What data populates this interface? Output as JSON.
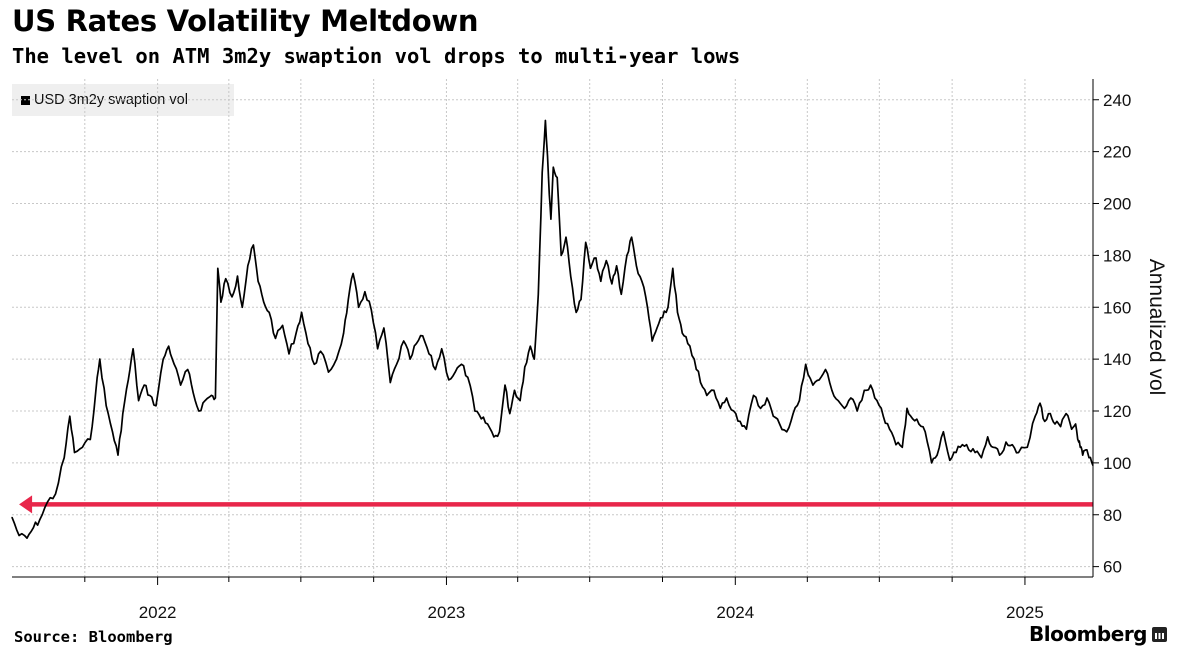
{
  "header": {
    "title": "US Rates Volatility Meltdown",
    "subtitle": "The level on ATM 3m2y swaption vol drops to multi-year lows"
  },
  "footer": {
    "source": "Source: Bloomberg",
    "brand": "Bloomberg"
  },
  "colors": {
    "line": "#000000",
    "reference": "#e8264a",
    "grid": "#c8c8c8"
  },
  "chart_data": {
    "type": "line",
    "title": "US Rates Volatility Meltdown",
    "subtitle": "The level on ATM 3m2y swaption vol drops to multi-year lows",
    "ylabel": "Annualized vol",
    "ylim": [
      56,
      248
    ],
    "yticks": [
      60,
      80,
      100,
      120,
      140,
      160,
      180,
      200,
      220,
      240
    ],
    "xlim": [
      "2021-07-01",
      "2025-03-28"
    ],
    "xticks": [
      {
        "date": "2022-01-01",
        "label": "2022"
      },
      {
        "date": "2023-01-01",
        "label": "2023"
      },
      {
        "date": "2024-01-01",
        "label": "2024"
      },
      {
        "date": "2025-01-01",
        "label": "2025"
      }
    ],
    "grid": true,
    "legend": "top-left",
    "series": [
      {
        "name": "USD 3m2y swaption vol",
        "points": [
          [
            "2021-07-01",
            79
          ],
          [
            "2021-07-10",
            72
          ],
          [
            "2021-07-20",
            71
          ],
          [
            "2021-07-28",
            75
          ],
          [
            "2021-08-05",
            78
          ],
          [
            "2021-08-15",
            85
          ],
          [
            "2021-08-25",
            88
          ],
          [
            "2021-09-05",
            102
          ],
          [
            "2021-09-12",
            118
          ],
          [
            "2021-09-18",
            104
          ],
          [
            "2021-09-28",
            106
          ],
          [
            "2021-10-08",
            109
          ],
          [
            "2021-10-15",
            128
          ],
          [
            "2021-10-20",
            140
          ],
          [
            "2021-10-28",
            122
          ],
          [
            "2021-11-05",
            112
          ],
          [
            "2021-11-12",
            103
          ],
          [
            "2021-11-18",
            119
          ],
          [
            "2021-11-25",
            132
          ],
          [
            "2021-12-01",
            144
          ],
          [
            "2021-12-08",
            124
          ],
          [
            "2021-12-15",
            130
          ],
          [
            "2021-12-22",
            126
          ],
          [
            "2021-12-30",
            122
          ],
          [
            "2022-01-08",
            140
          ],
          [
            "2022-01-15",
            145
          ],
          [
            "2022-01-22",
            138
          ],
          [
            "2022-01-30",
            130
          ],
          [
            "2022-02-08",
            136
          ],
          [
            "2022-02-15",
            127
          ],
          [
            "2022-02-22",
            120
          ],
          [
            "2022-03-02",
            124
          ],
          [
            "2022-03-10",
            126
          ],
          [
            "2022-03-15",
            125
          ],
          [
            "2022-03-18",
            175
          ],
          [
            "2022-03-22",
            162
          ],
          [
            "2022-03-28",
            171
          ],
          [
            "2022-04-05",
            164
          ],
          [
            "2022-04-12",
            172
          ],
          [
            "2022-04-18",
            160
          ],
          [
            "2022-04-25",
            176
          ],
          [
            "2022-05-02",
            184
          ],
          [
            "2022-05-08",
            170
          ],
          [
            "2022-05-15",
            162
          ],
          [
            "2022-05-22",
            158
          ],
          [
            "2022-05-30",
            148
          ],
          [
            "2022-06-08",
            153
          ],
          [
            "2022-06-16",
            142
          ],
          [
            "2022-06-25",
            150
          ],
          [
            "2022-07-02",
            158
          ],
          [
            "2022-07-10",
            146
          ],
          [
            "2022-07-18",
            138
          ],
          [
            "2022-07-26",
            143
          ],
          [
            "2022-08-05",
            135
          ],
          [
            "2022-08-15",
            140
          ],
          [
            "2022-08-24",
            150
          ],
          [
            "2022-08-30",
            163
          ],
          [
            "2022-09-05",
            173
          ],
          [
            "2022-09-12",
            160
          ],
          [
            "2022-09-20",
            166
          ],
          [
            "2022-09-28",
            159
          ],
          [
            "2022-10-06",
            144
          ],
          [
            "2022-10-14",
            152
          ],
          [
            "2022-10-22",
            131
          ],
          [
            "2022-10-30",
            138
          ],
          [
            "2022-11-08",
            147
          ],
          [
            "2022-11-16",
            140
          ],
          [
            "2022-11-24",
            146
          ],
          [
            "2022-12-02",
            149
          ],
          [
            "2022-12-10",
            142
          ],
          [
            "2022-12-18",
            136
          ],
          [
            "2022-12-26",
            144
          ],
          [
            "2023-01-04",
            132
          ],
          [
            "2023-01-12",
            135
          ],
          [
            "2023-01-20",
            138
          ],
          [
            "2023-01-28",
            133
          ],
          [
            "2023-02-06",
            120
          ],
          [
            "2023-02-14",
            117
          ],
          [
            "2023-02-22",
            115
          ],
          [
            "2023-03-02",
            110
          ],
          [
            "2023-03-09",
            112
          ],
          [
            "2023-03-16",
            130
          ],
          [
            "2023-03-22",
            119
          ],
          [
            "2023-03-28",
            128
          ],
          [
            "2023-04-04",
            124
          ],
          [
            "2023-04-10",
            137
          ],
          [
            "2023-04-17",
            145
          ],
          [
            "2023-04-22",
            140
          ],
          [
            "2023-04-27",
            165
          ],
          [
            "2023-05-02",
            212
          ],
          [
            "2023-05-06",
            232
          ],
          [
            "2023-05-10",
            210
          ],
          [
            "2023-05-13",
            194
          ],
          [
            "2023-05-16",
            214
          ],
          [
            "2023-05-21",
            210
          ],
          [
            "2023-05-26",
            180
          ],
          [
            "2023-06-01",
            187
          ],
          [
            "2023-06-07",
            172
          ],
          [
            "2023-06-14",
            158
          ],
          [
            "2023-06-20",
            163
          ],
          [
            "2023-06-26",
            185
          ],
          [
            "2023-07-02",
            175
          ],
          [
            "2023-07-09",
            179
          ],
          [
            "2023-07-15",
            170
          ],
          [
            "2023-07-22",
            178
          ],
          [
            "2023-07-29",
            169
          ],
          [
            "2023-08-04",
            176
          ],
          [
            "2023-08-10",
            165
          ],
          [
            "2023-08-17",
            180
          ],
          [
            "2023-08-23",
            187
          ],
          [
            "2023-08-29",
            176
          ],
          [
            "2023-09-05",
            170
          ],
          [
            "2023-09-12",
            160
          ],
          [
            "2023-09-18",
            147
          ],
          [
            "2023-09-24",
            152
          ],
          [
            "2023-10-01",
            156
          ],
          [
            "2023-10-08",
            160
          ],
          [
            "2023-10-14",
            175
          ],
          [
            "2023-10-20",
            158
          ],
          [
            "2023-10-26",
            150
          ],
          [
            "2023-11-02",
            146
          ],
          [
            "2023-11-10",
            140
          ],
          [
            "2023-11-18",
            131
          ],
          [
            "2023-11-26",
            126
          ],
          [
            "2023-12-05",
            128
          ],
          [
            "2023-12-13",
            121
          ],
          [
            "2023-12-21",
            125
          ],
          [
            "2023-12-30",
            120
          ],
          [
            "2024-01-07",
            116
          ],
          [
            "2024-01-15",
            113
          ],
          [
            "2024-01-24",
            126
          ],
          [
            "2024-02-02",
            121
          ],
          [
            "2024-02-10",
            125
          ],
          [
            "2024-02-18",
            118
          ],
          [
            "2024-02-26",
            115
          ],
          [
            "2024-03-06",
            112
          ],
          [
            "2024-03-14",
            119
          ],
          [
            "2024-03-22",
            124
          ],
          [
            "2024-03-30",
            138
          ],
          [
            "2024-04-08",
            130
          ],
          [
            "2024-04-16",
            132
          ],
          [
            "2024-04-24",
            136
          ],
          [
            "2024-05-02",
            128
          ],
          [
            "2024-05-10",
            124
          ],
          [
            "2024-05-18",
            121
          ],
          [
            "2024-05-26",
            125
          ],
          [
            "2024-06-03",
            120
          ],
          [
            "2024-06-12",
            128
          ],
          [
            "2024-06-20",
            130
          ],
          [
            "2024-06-28",
            124
          ],
          [
            "2024-07-06",
            118
          ],
          [
            "2024-07-14",
            113
          ],
          [
            "2024-07-22",
            107
          ],
          [
            "2024-07-30",
            106
          ],
          [
            "2024-08-05",
            121
          ],
          [
            "2024-08-12",
            117
          ],
          [
            "2024-08-20",
            115
          ],
          [
            "2024-08-28",
            112
          ],
          [
            "2024-09-05",
            100
          ],
          [
            "2024-09-12",
            103
          ],
          [
            "2024-09-20",
            112
          ],
          [
            "2024-09-28",
            101
          ],
          [
            "2024-10-06",
            104
          ],
          [
            "2024-10-14",
            107
          ],
          [
            "2024-10-22",
            105
          ],
          [
            "2024-10-30",
            104
          ],
          [
            "2024-11-07",
            102
          ],
          [
            "2024-11-15",
            110
          ],
          [
            "2024-11-22",
            106
          ],
          [
            "2024-11-30",
            103
          ],
          [
            "2024-12-08",
            108
          ],
          [
            "2024-12-16",
            107
          ],
          [
            "2024-12-24",
            104
          ],
          [
            "2025-01-04",
            106
          ],
          [
            "2025-01-14",
            118
          ],
          [
            "2025-01-20",
            123
          ],
          [
            "2025-01-26",
            116
          ],
          [
            "2025-02-02",
            119
          ],
          [
            "2025-02-08",
            115
          ],
          [
            "2025-02-15",
            114
          ],
          [
            "2025-02-22",
            119
          ],
          [
            "2025-03-01",
            113
          ],
          [
            "2025-03-06",
            115
          ],
          [
            "2025-03-10",
            108
          ],
          [
            "2025-03-12",
            106
          ],
          [
            "2025-03-15",
            103
          ],
          [
            "2025-03-19",
            105
          ],
          [
            "2025-03-23",
            102
          ],
          [
            "2025-03-28",
            99
          ]
        ]
      }
    ],
    "reference_line": {
      "value": 84,
      "from": "2021-07-15",
      "to": "2025-03-28",
      "direction": "left-arrow"
    }
  }
}
